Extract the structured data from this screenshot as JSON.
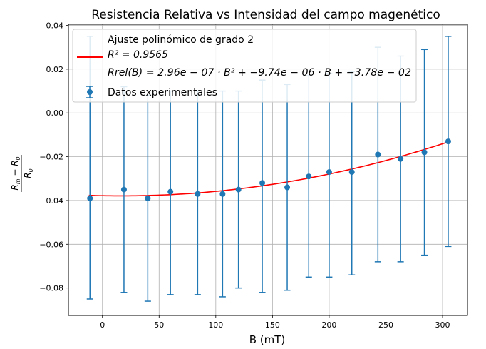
{
  "chart_data": {
    "type": "scatter",
    "title": "Resistencia Relativa vs Intensidad del campo magenético",
    "xlabel": "B (mT)",
    "ylabel": "Rm − R0 / R0",
    "xlim": [
      -30,
      322
    ],
    "ylim": [
      -0.0925,
      0.0405
    ],
    "xticks": [
      0,
      50,
      100,
      150,
      200,
      250,
      300
    ],
    "yticks": [
      -0.08,
      -0.06,
      -0.04,
      -0.02,
      0.0,
      0.02,
      0.04
    ],
    "xtick_labels": [
      "0",
      "50",
      "100",
      "150",
      "200",
      "250",
      "300"
    ],
    "ytick_labels": [
      "−0.08",
      "−0.06",
      "−0.04",
      "−0.02",
      "0.00",
      "0.02",
      "0.04"
    ],
    "grid": true,
    "legend": {
      "placement": "top-left",
      "fit_label_line1": "Ajuste polinómico de grado 2",
      "fit_label_line2": "R² = 0.9565",
      "fit_label_line3": "Rrel(B) = 2.96e − 07 · B² + −9.74e − 06 · B + −3.78e − 02",
      "data_label": "Datos experimentales"
    },
    "fit": {
      "name": "Ajuste polinómico de grado 2",
      "color": "#ff0000",
      "coefficients": {
        "a": 2.96e-07,
        "b": -9.74e-06,
        "c": -0.0378
      },
      "x_range": [
        -12,
        305
      ]
    },
    "series": [
      {
        "name": "Datos experimentales",
        "color": "#1f77b4",
        "x": [
          -11,
          19,
          40,
          60,
          84,
          106,
          120,
          141,
          163,
          182,
          200,
          220,
          243,
          263,
          284,
          305
        ],
        "y": [
          -0.039,
          -0.035,
          -0.039,
          -0.036,
          -0.037,
          -0.037,
          -0.035,
          -0.032,
          -0.034,
          -0.029,
          -0.027,
          -0.027,
          -0.019,
          -0.021,
          -0.018,
          -0.013
        ],
        "y_low": [
          -0.085,
          -0.082,
          -0.086,
          -0.083,
          -0.083,
          -0.084,
          -0.08,
          -0.082,
          -0.081,
          -0.075,
          -0.075,
          -0.074,
          -0.068,
          -0.068,
          -0.065,
          -0.061
        ],
        "y_high": [
          0.035,
          0.012,
          0.008,
          0.01,
          0.01,
          0.01,
          0.01,
          0.015,
          0.013,
          0.017,
          0.018,
          0.019,
          0.03,
          0.026,
          0.029,
          0.035
        ]
      }
    ]
  }
}
